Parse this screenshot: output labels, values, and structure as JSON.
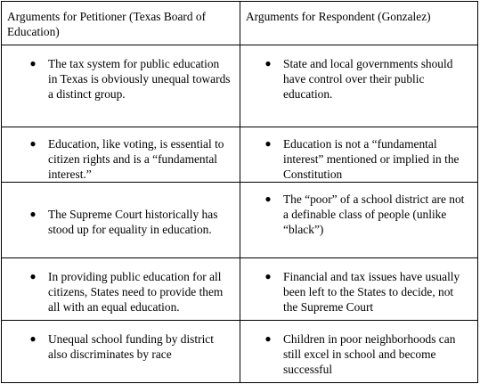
{
  "table": {
    "header": {
      "petitioner": "Arguments for Petitioner (Texas Board of Education)",
      "respondent": "Arguments for Respondent (Gonzalez)"
    },
    "bullet_glyph": "●",
    "rows": [
      {
        "petitioner": "The tax system for public education in Texas is obviously unequal towards a distinct group.",
        "respondent": "State and local governments should have control over their public education."
      },
      {
        "petitioner": "Education, like voting, is essential to citizen rights and is a “fundamental interest.”",
        "respondent": "Education is not a “fundamental interest” mentioned or implied in the Constitution"
      },
      {
        "petitioner": "The Supreme Court historically has stood up for equality in education.",
        "respondent": "The “poor” of a school district are not a definable class of people (unlike “black”)"
      },
      {
        "petitioner": "In providing public education for all citizens, States need to provide them all with an equal education.",
        "respondent": "Financial and tax issues have usually been left to the States to decide, not the Supreme Court"
      },
      {
        "petitioner": "Unequal school funding by district also discriminates by race",
        "respondent": "Children in poor neighborhoods can still excel in school and become successful"
      }
    ]
  }
}
